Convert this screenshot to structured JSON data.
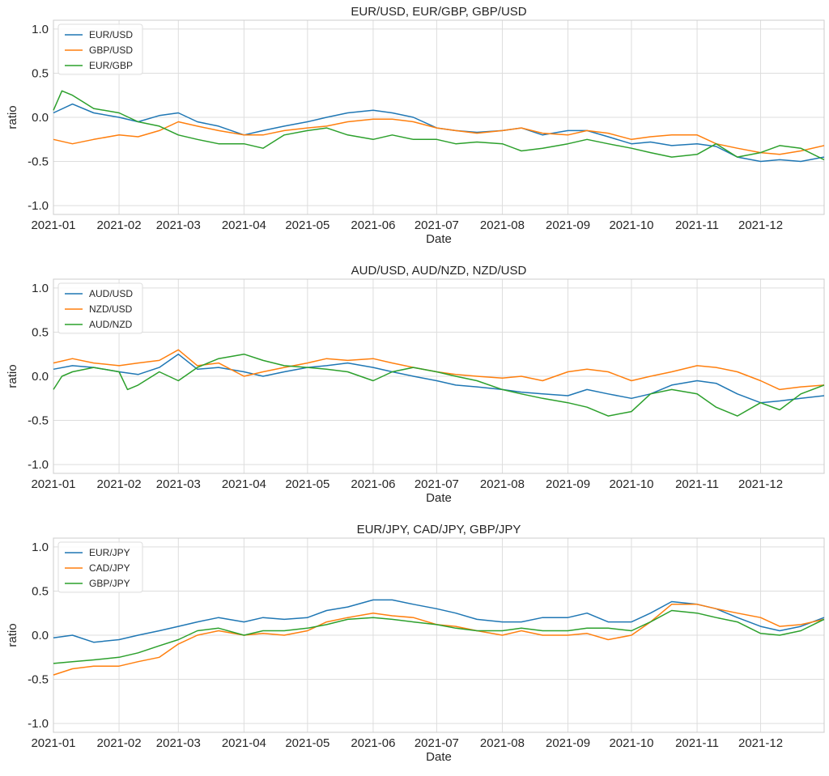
{
  "chart_data": [
    {
      "type": "line",
      "title": "EUR/USD, EUR/GBP, GBP/USD",
      "xlabel": "Date",
      "ylabel": "ratio",
      "ylim": [
        -1.1,
        1.1
      ],
      "yticks": [
        "1.0",
        "0.5",
        "0.0",
        "-0.5",
        "-1.0"
      ],
      "ytick_values": [
        1.0,
        0.5,
        0.0,
        -0.5,
        -1.0
      ],
      "xticks": [
        "2021-01",
        "2021-02",
        "2021-03",
        "2021-04",
        "2021-05",
        "2021-06",
        "2021-07",
        "2021-08",
        "2021-09",
        "2021-10",
        "2021-11",
        "2021-12"
      ],
      "xlim": [
        "2021-01-01",
        "2021-12-31"
      ],
      "grid": true,
      "legend_position": "top-left",
      "series": [
        {
          "name": "EUR/USD",
          "color": "#1f77b4",
          "x": [
            "2021-01-01",
            "2021-01-10",
            "2021-01-20",
            "2021-02-01",
            "2021-02-10",
            "2021-02-20",
            "2021-03-01",
            "2021-03-10",
            "2021-03-20",
            "2021-04-01",
            "2021-04-10",
            "2021-04-20",
            "2021-05-01",
            "2021-05-10",
            "2021-05-20",
            "2021-06-01",
            "2021-06-10",
            "2021-06-20",
            "2021-07-01",
            "2021-07-10",
            "2021-07-20",
            "2021-08-01",
            "2021-08-10",
            "2021-08-20",
            "2021-09-01",
            "2021-09-10",
            "2021-09-20",
            "2021-10-01",
            "2021-10-10",
            "2021-10-20",
            "2021-11-01",
            "2021-11-10",
            "2021-11-20",
            "2021-12-01",
            "2021-12-10",
            "2021-12-20",
            "2021-12-31"
          ],
          "y": [
            0.05,
            0.15,
            0.05,
            0.0,
            -0.05,
            0.02,
            0.05,
            -0.05,
            -0.1,
            -0.2,
            -0.15,
            -0.1,
            -0.05,
            0.0,
            0.05,
            0.08,
            0.05,
            0.0,
            -0.12,
            -0.15,
            -0.17,
            -0.15,
            -0.12,
            -0.2,
            -0.15,
            -0.15,
            -0.22,
            -0.3,
            -0.28,
            -0.32,
            -0.3,
            -0.33,
            -0.45,
            -0.5,
            -0.48,
            -0.5,
            -0.45
          ]
        },
        {
          "name": "GBP/USD",
          "color": "#ff7f0e",
          "x": [
            "2021-01-01",
            "2021-01-10",
            "2021-01-20",
            "2021-02-01",
            "2021-02-10",
            "2021-02-20",
            "2021-03-01",
            "2021-03-10",
            "2021-03-20",
            "2021-04-01",
            "2021-04-10",
            "2021-04-20",
            "2021-05-01",
            "2021-05-10",
            "2021-05-20",
            "2021-06-01",
            "2021-06-10",
            "2021-06-20",
            "2021-07-01",
            "2021-07-10",
            "2021-07-20",
            "2021-08-01",
            "2021-08-10",
            "2021-08-20",
            "2021-09-01",
            "2021-09-10",
            "2021-09-20",
            "2021-10-01",
            "2021-10-10",
            "2021-10-20",
            "2021-11-01",
            "2021-11-10",
            "2021-11-20",
            "2021-12-01",
            "2021-12-10",
            "2021-12-20",
            "2021-12-31"
          ],
          "y": [
            -0.25,
            -0.3,
            -0.25,
            -0.2,
            -0.22,
            -0.15,
            -0.05,
            -0.1,
            -0.15,
            -0.2,
            -0.2,
            -0.15,
            -0.12,
            -0.1,
            -0.05,
            -0.02,
            -0.02,
            -0.05,
            -0.12,
            -0.15,
            -0.18,
            -0.15,
            -0.12,
            -0.18,
            -0.2,
            -0.15,
            -0.18,
            -0.25,
            -0.22,
            -0.2,
            -0.2,
            -0.3,
            -0.35,
            -0.4,
            -0.42,
            -0.38,
            -0.32
          ]
        },
        {
          "name": "EUR/GBP",
          "color": "#2ca02c",
          "x": [
            "2021-01-01",
            "2021-01-05",
            "2021-01-10",
            "2021-01-20",
            "2021-02-01",
            "2021-02-10",
            "2021-02-20",
            "2021-03-01",
            "2021-03-10",
            "2021-03-20",
            "2021-04-01",
            "2021-04-10",
            "2021-04-20",
            "2021-05-01",
            "2021-05-10",
            "2021-05-20",
            "2021-06-01",
            "2021-06-10",
            "2021-06-20",
            "2021-07-01",
            "2021-07-10",
            "2021-07-20",
            "2021-08-01",
            "2021-08-10",
            "2021-08-20",
            "2021-09-01",
            "2021-09-10",
            "2021-09-20",
            "2021-10-01",
            "2021-10-10",
            "2021-10-20",
            "2021-11-01",
            "2021-11-10",
            "2021-11-20",
            "2021-12-01",
            "2021-12-10",
            "2021-12-20",
            "2021-12-31"
          ],
          "y": [
            0.08,
            0.3,
            0.25,
            0.1,
            0.05,
            -0.05,
            -0.1,
            -0.2,
            -0.25,
            -0.3,
            -0.3,
            -0.35,
            -0.2,
            -0.15,
            -0.12,
            -0.2,
            -0.25,
            -0.2,
            -0.25,
            -0.25,
            -0.3,
            -0.28,
            -0.3,
            -0.38,
            -0.35,
            -0.3,
            -0.25,
            -0.3,
            -0.35,
            -0.4,
            -0.45,
            -0.42,
            -0.3,
            -0.45,
            -0.4,
            -0.32,
            -0.35,
            -0.48
          ]
        }
      ]
    },
    {
      "type": "line",
      "title": "AUD/USD, AUD/NZD, NZD/USD",
      "xlabel": "Date",
      "ylabel": "ratio",
      "ylim": [
        -1.1,
        1.1
      ],
      "yticks": [
        "1.0",
        "0.5",
        "0.0",
        "-0.5",
        "-1.0"
      ],
      "ytick_values": [
        1.0,
        0.5,
        0.0,
        -0.5,
        -1.0
      ],
      "xticks": [
        "2021-01",
        "2021-02",
        "2021-03",
        "2021-04",
        "2021-05",
        "2021-06",
        "2021-07",
        "2021-08",
        "2021-09",
        "2021-10",
        "2021-11",
        "2021-12"
      ],
      "xlim": [
        "2021-01-01",
        "2021-12-31"
      ],
      "grid": true,
      "legend_position": "top-left",
      "series": [
        {
          "name": "AUD/USD",
          "color": "#1f77b4",
          "x": [
            "2021-01-01",
            "2021-01-10",
            "2021-01-20",
            "2021-02-01",
            "2021-02-10",
            "2021-02-20",
            "2021-03-01",
            "2021-03-10",
            "2021-03-20",
            "2021-04-01",
            "2021-04-10",
            "2021-04-20",
            "2021-05-01",
            "2021-05-10",
            "2021-05-20",
            "2021-06-01",
            "2021-06-10",
            "2021-06-20",
            "2021-07-01",
            "2021-07-10",
            "2021-07-20",
            "2021-08-01",
            "2021-08-10",
            "2021-08-20",
            "2021-09-01",
            "2021-09-10",
            "2021-09-20",
            "2021-10-01",
            "2021-10-10",
            "2021-10-20",
            "2021-11-01",
            "2021-11-10",
            "2021-11-20",
            "2021-12-01",
            "2021-12-10",
            "2021-12-20",
            "2021-12-31"
          ],
          "y": [
            0.08,
            0.12,
            0.1,
            0.05,
            0.02,
            0.1,
            0.25,
            0.08,
            0.1,
            0.05,
            0.0,
            0.05,
            0.1,
            0.12,
            0.15,
            0.1,
            0.05,
            0.0,
            -0.05,
            -0.1,
            -0.12,
            -0.15,
            -0.18,
            -0.2,
            -0.22,
            -0.15,
            -0.2,
            -0.25,
            -0.2,
            -0.1,
            -0.05,
            -0.08,
            -0.2,
            -0.3,
            -0.28,
            -0.25,
            -0.22
          ]
        },
        {
          "name": "NZD/USD",
          "color": "#ff7f0e",
          "x": [
            "2021-01-01",
            "2021-01-10",
            "2021-01-20",
            "2021-02-01",
            "2021-02-10",
            "2021-02-20",
            "2021-03-01",
            "2021-03-10",
            "2021-03-20",
            "2021-04-01",
            "2021-04-10",
            "2021-04-20",
            "2021-05-01",
            "2021-05-10",
            "2021-05-20",
            "2021-06-01",
            "2021-06-10",
            "2021-06-20",
            "2021-07-01",
            "2021-07-10",
            "2021-07-20",
            "2021-08-01",
            "2021-08-10",
            "2021-08-20",
            "2021-09-01",
            "2021-09-10",
            "2021-09-20",
            "2021-10-01",
            "2021-10-10",
            "2021-10-20",
            "2021-11-01",
            "2021-11-10",
            "2021-11-20",
            "2021-12-01",
            "2021-12-10",
            "2021-12-20",
            "2021-12-31"
          ],
          "y": [
            0.15,
            0.2,
            0.15,
            0.12,
            0.15,
            0.18,
            0.3,
            0.12,
            0.15,
            0.0,
            0.05,
            0.1,
            0.15,
            0.2,
            0.18,
            0.2,
            0.15,
            0.1,
            0.05,
            0.02,
            0.0,
            -0.02,
            0.0,
            -0.05,
            0.05,
            0.08,
            0.05,
            -0.05,
            0.0,
            0.05,
            0.12,
            0.1,
            0.05,
            -0.05,
            -0.15,
            -0.12,
            -0.1
          ]
        },
        {
          "name": "AUD/NZD",
          "color": "#2ca02c",
          "x": [
            "2021-01-01",
            "2021-01-05",
            "2021-01-10",
            "2021-01-20",
            "2021-02-01",
            "2021-02-05",
            "2021-02-10",
            "2021-02-20",
            "2021-03-01",
            "2021-03-10",
            "2021-03-20",
            "2021-04-01",
            "2021-04-10",
            "2021-04-20",
            "2021-05-01",
            "2021-05-10",
            "2021-05-20",
            "2021-06-01",
            "2021-06-10",
            "2021-06-20",
            "2021-07-01",
            "2021-07-10",
            "2021-07-20",
            "2021-08-01",
            "2021-08-10",
            "2021-08-20",
            "2021-09-01",
            "2021-09-10",
            "2021-09-20",
            "2021-10-01",
            "2021-10-10",
            "2021-10-20",
            "2021-11-01",
            "2021-11-10",
            "2021-11-20",
            "2021-12-01",
            "2021-12-10",
            "2021-12-20",
            "2021-12-31"
          ],
          "y": [
            -0.15,
            0.0,
            0.05,
            0.1,
            0.05,
            -0.15,
            -0.1,
            0.05,
            -0.05,
            0.1,
            0.2,
            0.25,
            0.18,
            0.12,
            0.1,
            0.08,
            0.05,
            -0.05,
            0.05,
            0.1,
            0.05,
            0.0,
            -0.05,
            -0.15,
            -0.2,
            -0.25,
            -0.3,
            -0.35,
            -0.45,
            -0.4,
            -0.2,
            -0.15,
            -0.2,
            -0.35,
            -0.45,
            -0.3,
            -0.38,
            -0.2,
            -0.1
          ]
        }
      ]
    },
    {
      "type": "line",
      "title": "EUR/JPY, CAD/JPY, GBP/JPY",
      "xlabel": "Date",
      "ylabel": "ratio",
      "ylim": [
        -1.1,
        1.1
      ],
      "yticks": [
        "1.0",
        "0.5",
        "0.0",
        "-0.5",
        "-1.0"
      ],
      "ytick_values": [
        1.0,
        0.5,
        0.0,
        -0.5,
        -1.0
      ],
      "xticks": [
        "2021-01",
        "2021-02",
        "2021-03",
        "2021-04",
        "2021-05",
        "2021-06",
        "2021-07",
        "2021-08",
        "2021-09",
        "2021-10",
        "2021-11",
        "2021-12"
      ],
      "xlim": [
        "2021-01-01",
        "2021-12-31"
      ],
      "grid": true,
      "legend_position": "top-left",
      "series": [
        {
          "name": "EUR/JPY",
          "color": "#1f77b4",
          "x": [
            "2021-01-01",
            "2021-01-10",
            "2021-01-20",
            "2021-02-01",
            "2021-02-10",
            "2021-02-20",
            "2021-03-01",
            "2021-03-10",
            "2021-03-20",
            "2021-04-01",
            "2021-04-10",
            "2021-04-20",
            "2021-05-01",
            "2021-05-10",
            "2021-05-20",
            "2021-06-01",
            "2021-06-10",
            "2021-06-20",
            "2021-07-01",
            "2021-07-10",
            "2021-07-20",
            "2021-08-01",
            "2021-08-10",
            "2021-08-20",
            "2021-09-01",
            "2021-09-10",
            "2021-09-20",
            "2021-10-01",
            "2021-10-10",
            "2021-10-20",
            "2021-11-01",
            "2021-11-10",
            "2021-11-20",
            "2021-12-01",
            "2021-12-10",
            "2021-12-20",
            "2021-12-31"
          ],
          "y": [
            -0.03,
            0.0,
            -0.08,
            -0.05,
            0.0,
            0.05,
            0.1,
            0.15,
            0.2,
            0.15,
            0.2,
            0.18,
            0.2,
            0.28,
            0.32,
            0.4,
            0.4,
            0.35,
            0.3,
            0.25,
            0.18,
            0.15,
            0.15,
            0.2,
            0.2,
            0.25,
            0.15,
            0.15,
            0.25,
            0.38,
            0.35,
            0.3,
            0.2,
            0.1,
            0.05,
            0.1,
            0.2
          ]
        },
        {
          "name": "CAD/JPY",
          "color": "#ff7f0e",
          "x": [
            "2021-01-01",
            "2021-01-10",
            "2021-01-20",
            "2021-02-01",
            "2021-02-10",
            "2021-02-20",
            "2021-03-01",
            "2021-03-10",
            "2021-03-20",
            "2021-04-01",
            "2021-04-10",
            "2021-04-20",
            "2021-05-01",
            "2021-05-10",
            "2021-05-20",
            "2021-06-01",
            "2021-06-10",
            "2021-06-20",
            "2021-07-01",
            "2021-07-10",
            "2021-07-20",
            "2021-08-01",
            "2021-08-10",
            "2021-08-20",
            "2021-09-01",
            "2021-09-10",
            "2021-09-20",
            "2021-10-01",
            "2021-10-10",
            "2021-10-20",
            "2021-11-01",
            "2021-11-10",
            "2021-11-20",
            "2021-12-01",
            "2021-12-10",
            "2021-12-20",
            "2021-12-31"
          ],
          "y": [
            -0.45,
            -0.38,
            -0.35,
            -0.35,
            -0.3,
            -0.25,
            -0.1,
            0.0,
            0.05,
            0.0,
            0.02,
            0.0,
            0.05,
            0.15,
            0.2,
            0.25,
            0.22,
            0.2,
            0.12,
            0.1,
            0.05,
            0.0,
            0.05,
            0.0,
            0.0,
            0.02,
            -0.05,
            0.0,
            0.15,
            0.35,
            0.35,
            0.3,
            0.25,
            0.2,
            0.1,
            0.12,
            0.18
          ]
        },
        {
          "name": "GBP/JPY",
          "color": "#2ca02c",
          "x": [
            "2021-01-01",
            "2021-01-10",
            "2021-01-20",
            "2021-02-01",
            "2021-02-10",
            "2021-02-20",
            "2021-03-01",
            "2021-03-10",
            "2021-03-20",
            "2021-04-01",
            "2021-04-10",
            "2021-04-20",
            "2021-05-01",
            "2021-05-10",
            "2021-05-20",
            "2021-06-01",
            "2021-06-10",
            "2021-06-20",
            "2021-07-01",
            "2021-07-10",
            "2021-07-20",
            "2021-08-01",
            "2021-08-10",
            "2021-08-20",
            "2021-09-01",
            "2021-09-10",
            "2021-09-20",
            "2021-10-01",
            "2021-10-10",
            "2021-10-20",
            "2021-11-01",
            "2021-11-10",
            "2021-11-20",
            "2021-12-01",
            "2021-12-10",
            "2021-12-20",
            "2021-12-31"
          ],
          "y": [
            -0.32,
            -0.3,
            -0.28,
            -0.25,
            -0.2,
            -0.12,
            -0.05,
            0.05,
            0.08,
            0.0,
            0.05,
            0.05,
            0.08,
            0.12,
            0.18,
            0.2,
            0.18,
            0.15,
            0.12,
            0.08,
            0.05,
            0.05,
            0.08,
            0.05,
            0.05,
            0.08,
            0.08,
            0.05,
            0.15,
            0.28,
            0.25,
            0.2,
            0.15,
            0.02,
            0.0,
            0.05,
            0.18
          ]
        }
      ]
    }
  ]
}
